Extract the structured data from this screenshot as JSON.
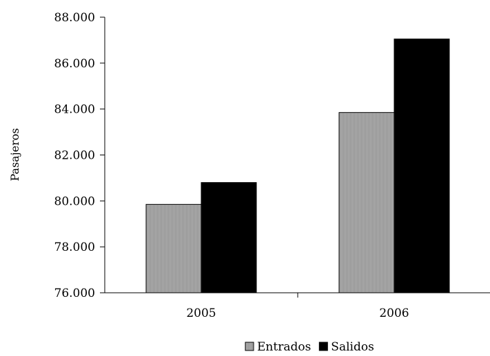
{
  "chart_data": {
    "type": "bar",
    "title": "",
    "xlabel": "",
    "ylabel": "Pasajeros",
    "categories": [
      "2005",
      "2006"
    ],
    "series": [
      {
        "name": "Entrados",
        "values": [
          79850,
          83850
        ],
        "color": "#a6a6a6"
      },
      {
        "name": "Salidos",
        "values": [
          80800,
          87050
        ],
        "color": "#000000"
      }
    ],
    "ylim": [
      76000,
      88000
    ],
    "yticks": [
      76000,
      78000,
      80000,
      82000,
      84000,
      86000,
      88000
    ],
    "ytick_labels": [
      "76.000",
      "78.000",
      "80.000",
      "82.000",
      "84.000",
      "86.000",
      "88.000"
    ],
    "grid": false,
    "legend_position": "bottom"
  }
}
